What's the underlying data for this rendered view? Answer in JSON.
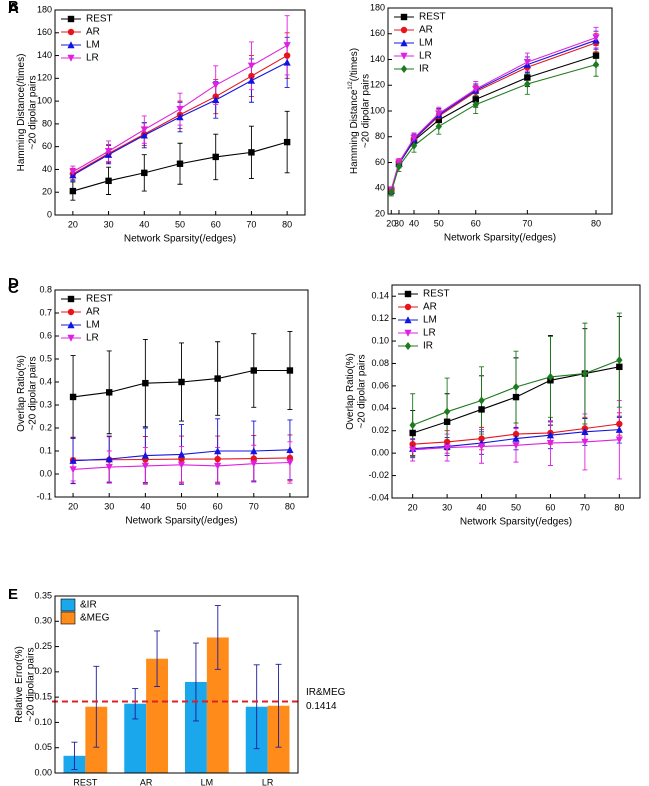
{
  "chart_data": [
    {
      "type": "line",
      "panel": "A",
      "xlabel": "Network Sparsity(/edges)",
      "ylabel": [
        "Hamming Distance(/times)"
      ],
      "ylabel2": "~20 dipolar pairs",
      "x": [
        20,
        30,
        40,
        50,
        60,
        70,
        80
      ],
      "xlim": [
        15,
        85
      ],
      "xticks": [
        20,
        30,
        40,
        50,
        60,
        70,
        80
      ],
      "ylim": [
        0,
        180
      ],
      "yticks": [
        0,
        20,
        40,
        60,
        80,
        100,
        120,
        140,
        160,
        180
      ],
      "legend": "top-left",
      "series": [
        {
          "name": "REST",
          "color": "#000000",
          "marker": "square",
          "values": [
            21,
            30,
            37,
            45,
            51,
            55,
            64
          ],
          "errors": [
            8,
            12,
            16,
            18,
            20,
            23,
            27
          ]
        },
        {
          "name": "AR",
          "color": "#e8141c",
          "marker": "circle",
          "values": [
            36,
            54,
            71,
            88,
            104,
            122,
            140
          ],
          "errors": [
            5,
            8,
            10,
            12,
            15,
            18,
            20
          ]
        },
        {
          "name": "LM",
          "color": "#1414e0",
          "marker": "triangle-up",
          "values": [
            35,
            53,
            70,
            86,
            101,
            118,
            134
          ],
          "errors": [
            5,
            8,
            11,
            13,
            16,
            19,
            22
          ]
        },
        {
          "name": "LR",
          "color": "#e020e0",
          "marker": "triangle-down",
          "values": [
            38,
            56,
            75,
            93,
            114,
            131,
            149
          ],
          "errors": [
            5,
            9,
            12,
            14,
            17,
            21,
            26
          ]
        }
      ]
    },
    {
      "type": "line",
      "panel": "B",
      "xlabel": "Network Sparsity(/edges)",
      "ylabel": [
        "Hamming Distance",
        "1/2",
        "(/times)"
      ],
      "ylabel_sup": 1,
      "ylabel2": "~20 dipolar pairs",
      "x": [
        20,
        30,
        40,
        50,
        60,
        70,
        80
      ],
      "xlim": [
        0,
        82
      ],
      "xpower": 3,
      "xticks": [
        20,
        30,
        40,
        50,
        60,
        70,
        80
      ],
      "ylim": [
        20,
        180
      ],
      "yticks": [
        20,
        40,
        60,
        80,
        100,
        120,
        140,
        160,
        180
      ],
      "legend": "top-left",
      "series": [
        {
          "name": "REST",
          "color": "#000000",
          "marker": "square",
          "values": [
            38,
            59,
            77,
            93,
            109,
            126,
            143
          ],
          "errors": [
            3,
            3,
            4,
            5,
            6,
            7,
            8
          ]
        },
        {
          "name": "AR",
          "color": "#e8141c",
          "marker": "circle",
          "values": [
            38,
            60,
            78,
            96,
            115,
            134,
            153
          ],
          "errors": [
            2,
            3,
            4,
            5,
            5,
            6,
            7
          ]
        },
        {
          "name": "LM",
          "color": "#1414e0",
          "marker": "triangle-up",
          "values": [
            38,
            59,
            78,
            97,
            116,
            136,
            155
          ],
          "errors": [
            2,
            3,
            4,
            5,
            5,
            6,
            7
          ]
        },
        {
          "name": "LR",
          "color": "#e020e0",
          "marker": "triangle-down",
          "values": [
            39,
            60,
            79,
            98,
            117,
            138,
            157
          ],
          "errors": [
            2,
            3,
            4,
            5,
            6,
            7,
            8
          ]
        },
        {
          "name": "IR",
          "color": "#1e7a1e",
          "marker": "diamond",
          "values": [
            37,
            57,
            73,
            88,
            105,
            121,
            136
          ],
          "errors": [
            3,
            4,
            5,
            6,
            7,
            8,
            9
          ]
        }
      ]
    },
    {
      "type": "line",
      "panel": "C",
      "xlabel": "Network Sparsity(/edges)",
      "ylabel": [
        "Overlap Ratio(%)"
      ],
      "ylabel2": "~20 dipolar pairs",
      "x": [
        20,
        30,
        40,
        50,
        60,
        70,
        80
      ],
      "xlim": [
        15,
        85
      ],
      "xticks": [
        20,
        30,
        40,
        50,
        60,
        70,
        80
      ],
      "ylim": [
        -0.1,
        0.8
      ],
      "yticks": [
        -0.1,
        {
          "value": 0,
          "label": "0.0"
        },
        0.1,
        0.2,
        0.3,
        0.4,
        0.5,
        0.6,
        0.7,
        0.8
      ],
      "legend": "top-left",
      "series": [
        {
          "name": "REST",
          "color": "#000000",
          "marker": "square",
          "values": [
            0.335,
            0.355,
            0.395,
            0.4,
            0.415,
            0.45,
            0.45
          ],
          "errors": [
            0.18,
            0.18,
            0.19,
            0.17,
            0.16,
            0.16,
            0.17
          ]
        },
        {
          "name": "AR",
          "color": "#e8141c",
          "marker": "circle",
          "values": [
            0.06,
            0.062,
            0.063,
            0.065,
            0.065,
            0.067,
            0.07
          ],
          "errors": [
            0.1,
            0.1,
            0.1,
            0.1,
            0.1,
            0.1,
            0.1
          ]
        },
        {
          "name": "LM",
          "color": "#1414e0",
          "marker": "triangle-up",
          "values": [
            0.058,
            0.065,
            0.08,
            0.085,
            0.1,
            0.1,
            0.105
          ],
          "errors": [
            0.1,
            0.1,
            0.12,
            0.13,
            0.14,
            0.13,
            0.13
          ]
        },
        {
          "name": "LR",
          "color": "#e020e0",
          "marker": "triangle-down",
          "values": [
            0.02,
            0.03,
            0.035,
            0.04,
            0.035,
            0.045,
            0.05
          ],
          "errors": [
            0.05,
            0.07,
            0.08,
            0.08,
            0.08,
            0.08,
            0.09
          ]
        }
      ]
    },
    {
      "type": "line",
      "panel": "D",
      "xlabel": "Network Sparsity(/edges)",
      "ylabel": [
        "Overlap Ratio(%)"
      ],
      "ylabel2": "~20 dipolar pairs",
      "x": [
        20,
        30,
        40,
        50,
        60,
        70,
        80
      ],
      "xlim": [
        14,
        86
      ],
      "xticks": [
        20,
        30,
        40,
        50,
        60,
        70,
        80
      ],
      "ylim": [
        -0.04,
        0.15
      ],
      "yticks": [
        -0.04,
        -0.02,
        {
          "value": 0,
          "label": "0.00"
        },
        0.02,
        0.04,
        0.06,
        0.08,
        {
          "value": 0.1,
          "label": "0.10"
        },
        0.12,
        0.14
      ],
      "legend": "top-left",
      "series": [
        {
          "name": "REST",
          "color": "#000000",
          "marker": "square",
          "values": [
            0.018,
            0.028,
            0.039,
            0.05,
            0.065,
            0.071,
            0.077
          ],
          "errors": [
            0.02,
            0.025,
            0.03,
            0.035,
            0.04,
            0.04,
            0.045
          ]
        },
        {
          "name": "AR",
          "color": "#e8141c",
          "marker": "circle",
          "values": [
            0.008,
            0.01,
            0.013,
            0.017,
            0.018,
            0.022,
            0.026
          ],
          "errors": [
            0.01,
            0.01,
            0.01,
            0.01,
            0.01,
            0.01,
            0.01
          ]
        },
        {
          "name": "LM",
          "color": "#1414e0",
          "marker": "triangle-up",
          "values": [
            0.004,
            0.006,
            0.009,
            0.013,
            0.016,
            0.019,
            0.021
          ],
          "errors": [
            0.008,
            0.008,
            0.01,
            0.01,
            0.012,
            0.012,
            0.012
          ]
        },
        {
          "name": "LR",
          "color": "#e020e0",
          "marker": "triangle-down",
          "values": [
            0.003,
            0.005,
            0.006,
            0.007,
            0.009,
            0.01,
            0.012
          ],
          "errors": [
            0.01,
            0.012,
            0.015,
            0.015,
            0.02,
            0.025,
            0.035
          ]
        },
        {
          "name": "IR",
          "color": "#1e7a1e",
          "marker": "diamond",
          "values": [
            0.025,
            0.037,
            0.047,
            0.059,
            0.068,
            0.071,
            0.083
          ],
          "errors": [
            0.028,
            0.03,
            0.03,
            0.032,
            0.036,
            0.045,
            0.042
          ]
        }
      ]
    },
    {
      "type": "bar",
      "panel": "E",
      "ylabel": [
        "Relative Error(%)"
      ],
      "ylabel2": "~20 dipolar pairs",
      "categories": [
        "REST",
        "AR",
        "LM",
        "LR"
      ],
      "ylim": [
        0,
        0.35
      ],
      "yticks": [
        {
          "value": 0,
          "label": "0.00"
        },
        0.05,
        {
          "value": 0.1,
          "label": "0.10"
        },
        0.15,
        {
          "value": 0.2,
          "label": "0.20"
        },
        0.25,
        {
          "value": 0.3,
          "label": "0.30"
        },
        0.35
      ],
      "legend": "top-left",
      "error_color": "#1c1c9c",
      "series": [
        {
          "name": "&IR",
          "color": "#1aa7ec",
          "values": [
            0.034,
            0.137,
            0.18,
            0.131
          ],
          "errors": [
            0.027,
            0.03,
            0.077,
            0.083
          ]
        },
        {
          "name": "&MEG",
          "color": "#ff8c1a",
          "values": [
            0.131,
            0.226,
            0.268,
            0.133
          ],
          "errors": [
            0.08,
            0.055,
            0.063,
            0.082
          ]
        }
      ],
      "reference": {
        "value": 0.1414,
        "label": "IR&MEG",
        "color": "#e02020"
      }
    }
  ]
}
